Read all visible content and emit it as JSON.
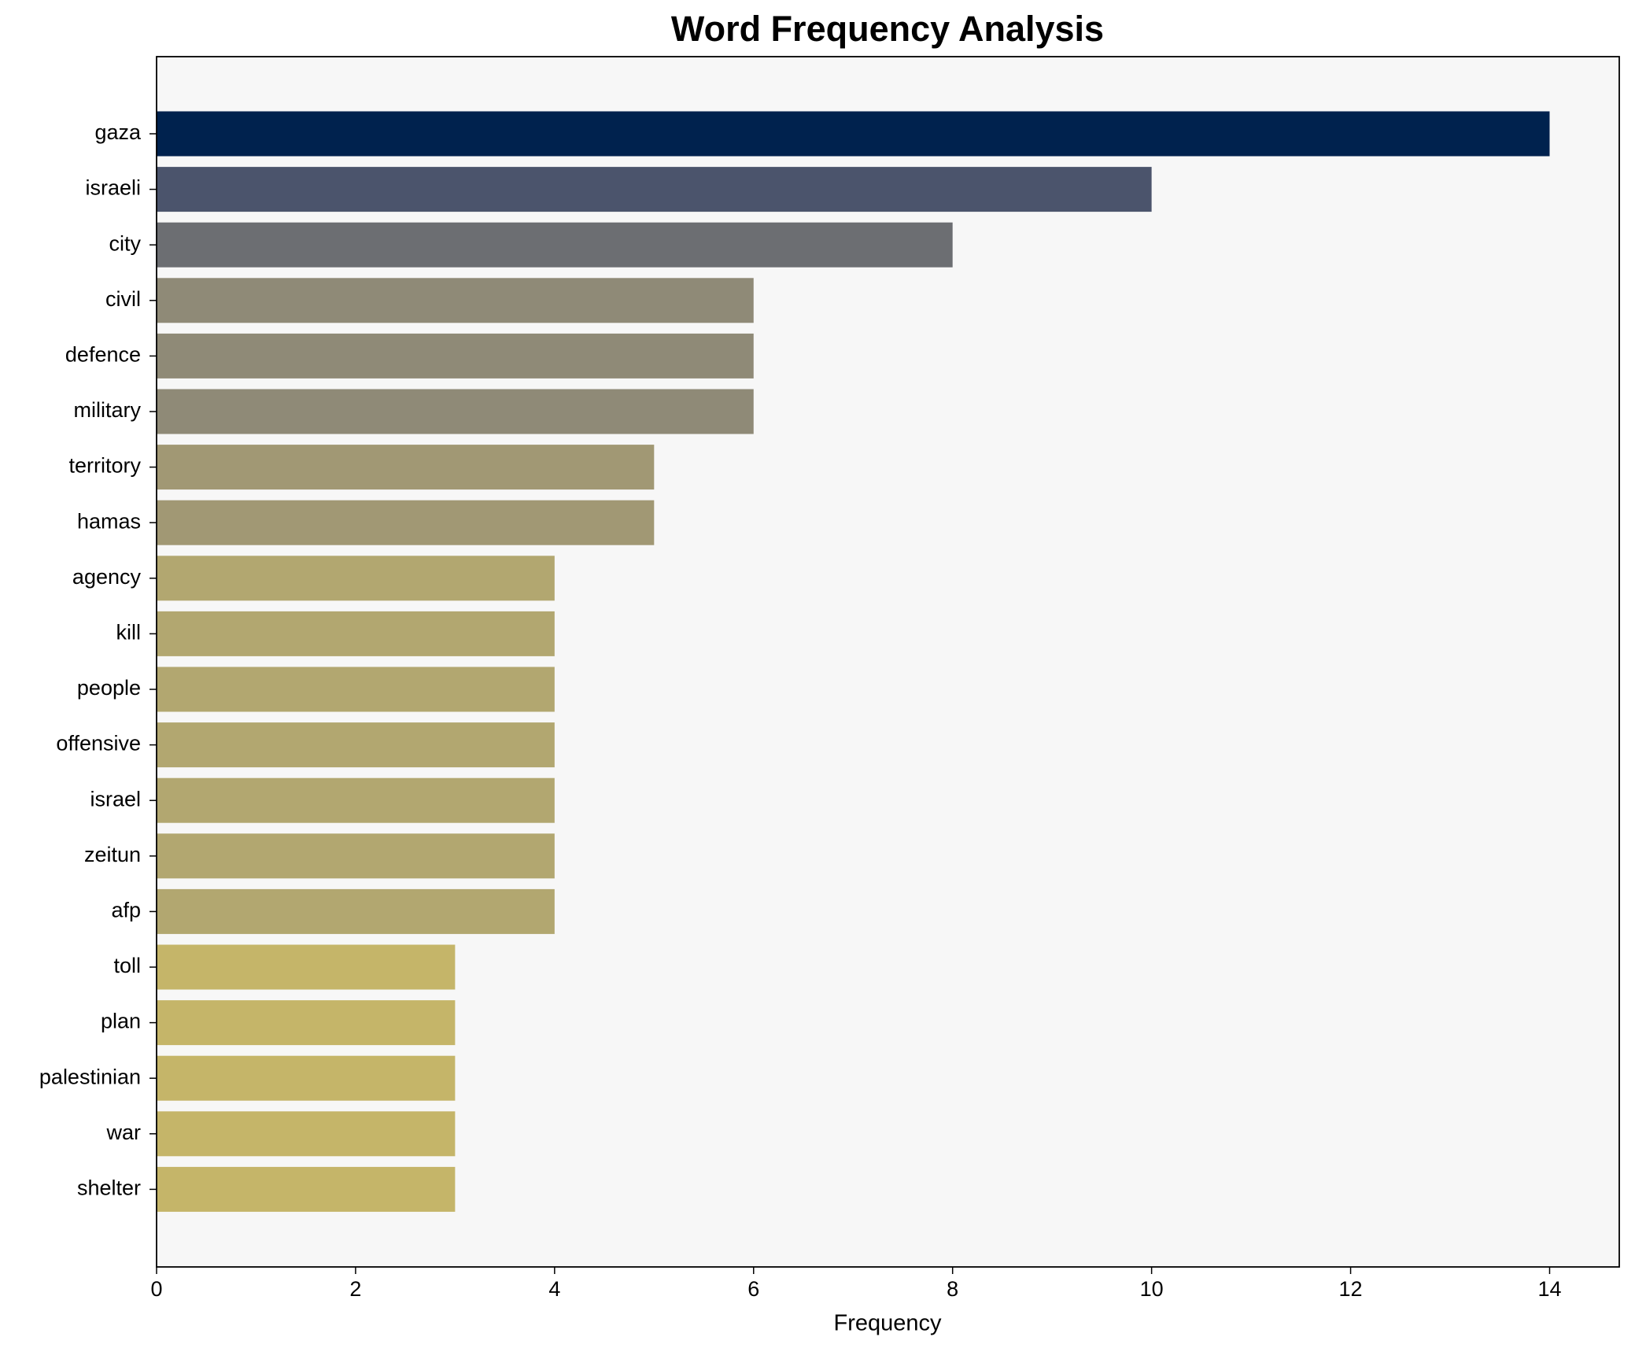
{
  "chart_data": {
    "type": "barh",
    "title": "Word Frequency Analysis",
    "xlabel": "Frequency",
    "categories": [
      "gaza",
      "israeli",
      "city",
      "civil",
      "defence",
      "military",
      "territory",
      "hamas",
      "agency",
      "kill",
      "people",
      "offensive",
      "israel",
      "zeitun",
      "afp",
      "toll",
      "plan",
      "palestinian",
      "war",
      "shelter"
    ],
    "values": [
      14,
      10,
      8,
      6,
      6,
      6,
      5,
      5,
      4,
      4,
      4,
      4,
      4,
      4,
      4,
      3,
      3,
      3,
      3,
      3
    ],
    "colors": [
      "#00224e",
      "#4b546c",
      "#6c6e72",
      "#8f8a77",
      "#8f8a77",
      "#8f8a77",
      "#a19874",
      "#a19874",
      "#b2a770",
      "#b2a770",
      "#b2a770",
      "#b2a770",
      "#b2a770",
      "#b2a770",
      "#b2a770",
      "#c5b569",
      "#c5b569",
      "#c5b569",
      "#c5b569",
      "#c5b569"
    ],
    "xlim": [
      0,
      14.7
    ],
    "xticks": [
      0,
      2,
      4,
      6,
      8,
      10,
      12,
      14
    ],
    "grid": false
  }
}
